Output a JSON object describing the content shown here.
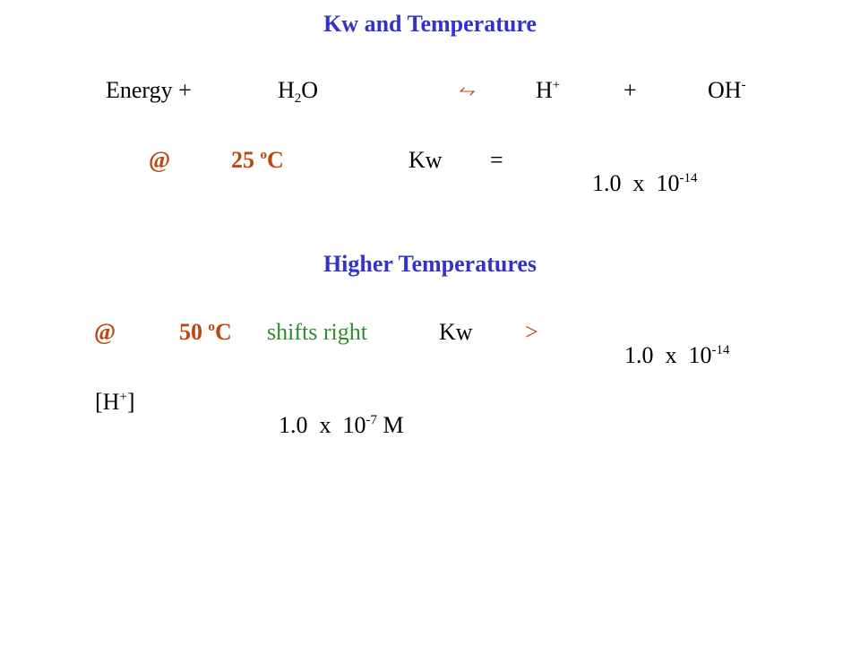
{
  "colors": {
    "heading": "#3333cc",
    "orange": "#c0440e",
    "green": "#2e8b2e",
    "text": "#000000"
  },
  "title": "Kw and Temperature",
  "equation": {
    "energy": "Energy +",
    "water_h": "H",
    "water_sub": "2",
    "water_o": "O",
    "arrow": "⥊",
    "hplus_h": "H",
    "hplus_sup": "+",
    "plus": "+",
    "oh": "OH",
    "oh_sup": "-"
  },
  "row25": {
    "at": "@",
    "temp_value": "25",
    "temp_deg": "o",
    "temp_unit": "C",
    "kw": "Kw",
    "relation": "=",
    "mantissa": "1.0  x  10",
    "exponent": "-14"
  },
  "section2_title": "Higher Temperatures",
  "row50": {
    "at": "@",
    "temp_value": "50",
    "temp_deg": "o",
    "temp_unit": "C",
    "shift": "shifts right",
    "kw": "Kw",
    "relation": ">",
    "mantissa": "1.0  x  10",
    "exponent": "-14"
  },
  "h_conc": {
    "label_open": "[H",
    "label_sup": "+",
    "label_close": "]",
    "mantissa": "1.0  x  10",
    "exponent": "-7",
    "unit": "M"
  }
}
